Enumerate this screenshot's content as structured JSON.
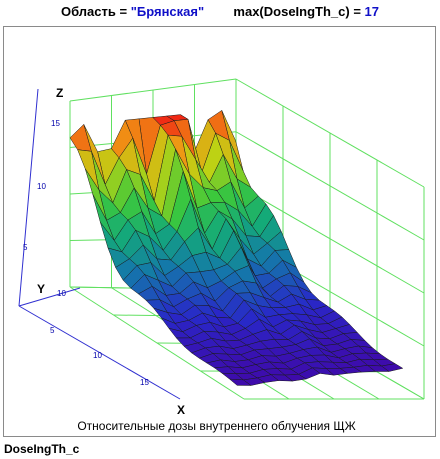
{
  "header": {
    "region_label": "Область =",
    "region_value": "\"Брянская\"",
    "max_expr": "max(DoseIngTh_c) =",
    "max_value": "17"
  },
  "plot": {
    "axes": {
      "z_label": "Z",
      "y_label": "Y",
      "x_label": "X",
      "z_ticks": [
        "15",
        "10",
        "5"
      ],
      "y_ticks": [
        "10",
        "5"
      ],
      "x_ticks": [
        "5",
        "10",
        "15"
      ]
    },
    "caption": "Относительные дозы внутреннего облучения ЩЖ"
  },
  "variable_name": "DoseIngTh_c",
  "colors": {
    "axis_blue": "#3030d0",
    "grid_green": "#60e060",
    "tick_blue": "#0000aa",
    "highlight_blue": "#1010c8"
  }
}
